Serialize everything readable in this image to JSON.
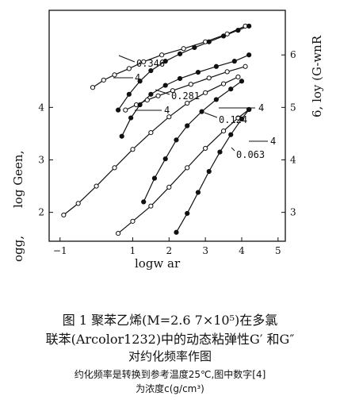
{
  "chart_data": {
    "type": "line",
    "x_axis": {
      "label": "logw ar",
      "ticks": [
        "−1",
        "1",
        "2",
        "3",
        "4",
        "5"
      ],
      "range": [
        -1.3,
        5.2
      ]
    },
    "y_axis_left": {
      "label": "log Geen,",
      "label_sub": "ogg,",
      "ticks": [
        "2",
        "3",
        "4"
      ],
      "range": [
        1.45,
        5.85
      ]
    },
    "y_axis_right": {
      "label": "6, loy (G-wnR",
      "ticks": [
        "3",
        "4",
        "5",
        "6"
      ]
    },
    "concentration_labels": [
      "0.346",
      "0.281",
      "0.124",
      "0.063"
    ],
    "marker_labels": [
      "4",
      "4",
      "4",
      "4"
    ],
    "series": [
      {
        "name": "0.346",
        "marker": "open",
        "x": [
          -0.1,
          0.2,
          0.5,
          0.9,
          1.3,
          1.8,
          2.4,
          3.0,
          3.6,
          4.1
        ],
        "y": [
          4.38,
          4.52,
          4.62,
          4.74,
          4.87,
          5.0,
          5.12,
          5.25,
          5.4,
          5.55
        ]
      },
      {
        "name": "0.346",
        "marker": "filled",
        "x": [
          0.6,
          0.9,
          1.2,
          1.5,
          1.9,
          2.3,
          2.7,
          3.1,
          3.5,
          3.9,
          4.2
        ],
        "y": [
          3.95,
          4.25,
          4.5,
          4.7,
          4.88,
          5.02,
          5.14,
          5.25,
          5.36,
          5.47,
          5.55
        ]
      },
      {
        "name": "0.281",
        "marker": "open",
        "x": [
          0.8,
          1.1,
          1.4,
          1.7,
          2.1,
          2.6,
          3.1,
          3.6,
          4.1
        ],
        "y": [
          3.95,
          4.05,
          4.14,
          4.22,
          4.32,
          4.44,
          4.56,
          4.68,
          4.78
        ]
      },
      {
        "name": "0.281",
        "marker": "filled",
        "x": [
          0.7,
          0.95,
          1.2,
          1.5,
          1.9,
          2.3,
          2.8,
          3.3,
          3.8,
          4.2
        ],
        "y": [
          3.45,
          3.8,
          4.05,
          4.25,
          4.42,
          4.55,
          4.67,
          4.78,
          4.88,
          5.0
        ]
      },
      {
        "name": "0.124",
        "marker": "open",
        "x": [
          -0.9,
          -0.5,
          0.0,
          0.5,
          1.0,
          1.5,
          2.0,
          2.5,
          3.0,
          3.5,
          3.9
        ],
        "y": [
          1.95,
          2.17,
          2.5,
          2.85,
          3.2,
          3.52,
          3.82,
          4.08,
          4.28,
          4.45,
          4.58
        ]
      },
      {
        "name": "0.124",
        "marker": "filled",
        "x": [
          1.3,
          1.6,
          1.9,
          2.2,
          2.5,
          2.9,
          3.3,
          3.7,
          4.0
        ],
        "y": [
          2.2,
          2.65,
          3.02,
          3.38,
          3.65,
          3.92,
          4.15,
          4.35,
          4.5
        ]
      },
      {
        "name": "0.063",
        "marker": "open",
        "x": [
          0.6,
          1.0,
          1.5,
          2.0,
          2.5,
          3.0,
          3.5,
          3.9,
          4.2
        ],
        "y": [
          1.6,
          1.83,
          2.12,
          2.48,
          2.85,
          3.22,
          3.55,
          3.8,
          3.96
        ]
      },
      {
        "name": "0.063",
        "marker": "filled",
        "x": [
          2.2,
          2.5,
          2.8,
          3.1,
          3.4,
          3.7,
          4.0,
          4.2
        ],
        "y": [
          1.62,
          1.98,
          2.38,
          2.78,
          3.15,
          3.48,
          3.78,
          3.96
        ]
      }
    ]
  },
  "caption": {
    "line1": "图 1   聚苯乙烯(M=2.6 7×10⁵)在多氯",
    "line2": "联苯(Arcolor1232)中的动态粘弹性G′ 和G″",
    "line3": "对约化频率作图",
    "line4": "约化频率是转换到参考温度25℃,图中数字[4]",
    "line5": "为浓度c(g/cm³)"
  }
}
